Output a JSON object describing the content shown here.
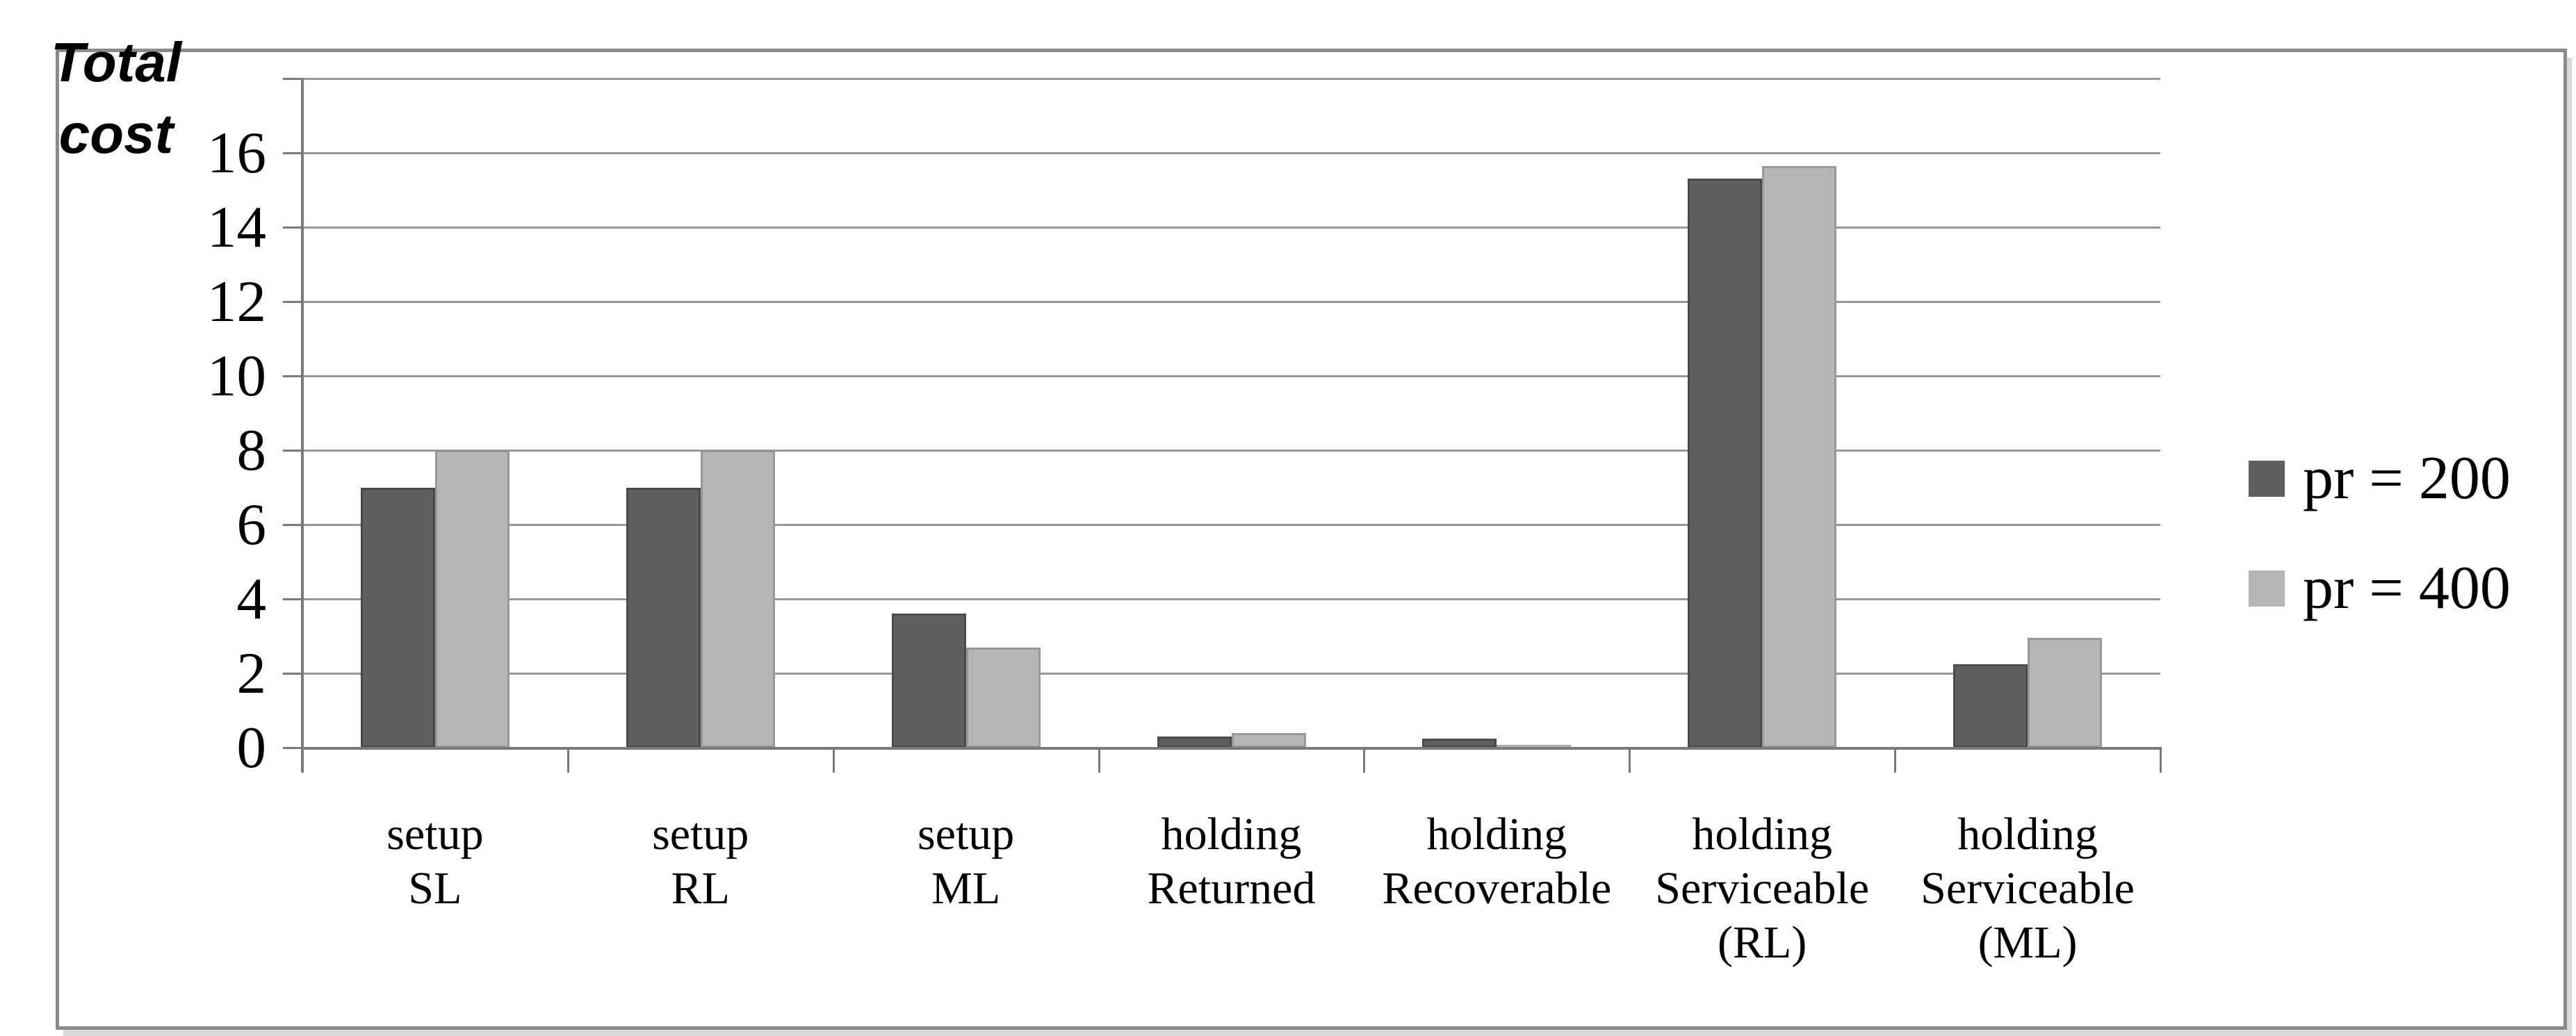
{
  "figure": {
    "title": "Total\ncost"
  },
  "chart_data": {
    "type": "bar",
    "title": "Total cost",
    "categories": [
      "setup\nSL",
      "setup\nRL",
      "setup\nML",
      "holding\nReturned",
      "holding\nRecoverable",
      "holding\nServiceable\n(RL)",
      "holding\nServiceable\n(ML)"
    ],
    "series": [
      {
        "name": "pr = 200",
        "color": "#5f5f5f",
        "border_color": "#4a4a4a",
        "values": [
          7.0,
          7.0,
          3.6,
          0.3,
          0.25,
          15.3,
          2.25
        ]
      },
      {
        "name": "pr = 400",
        "color": "#b6b6b6",
        "border_color": "#989898",
        "values": [
          8.0,
          8.0,
          2.7,
          0.4,
          0.08,
          15.65,
          2.95
        ]
      }
    ],
    "ylabel": "Total cost",
    "xlabel": "",
    "ylim": [
      0,
      18
    ],
    "yticks_labeled": [
      0,
      2,
      4,
      6,
      8,
      10,
      12,
      14,
      16
    ],
    "gridline_values": [
      2,
      4,
      6,
      8,
      10,
      12,
      14,
      16,
      18
    ],
    "grid": "horizontal",
    "legend_position": "right",
    "colors": {
      "gridline": "#979797",
      "axis": "#7a7a7a",
      "text": "#000000",
      "frame_border": "#8a8a8a"
    }
  }
}
